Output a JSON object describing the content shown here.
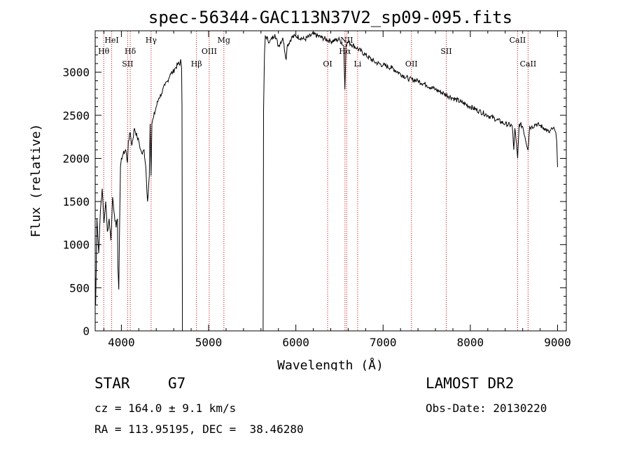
{
  "chart_data": {
    "type": "line",
    "title": "spec-56344-GAC113N37V2_sp09-095.fits",
    "xlabel": "Wavelength (Å)",
    "ylabel": "Flux (relative)",
    "xlim": [
      3700,
      9100
    ],
    "ylim": [
      0,
      3480
    ],
    "xticks": [
      4000,
      5000,
      6000,
      7000,
      8000,
      9000
    ],
    "yticks": [
      0,
      500,
      1000,
      1500,
      2000,
      2500,
      3000
    ],
    "xtick_labels": [
      "4000",
      "5000",
      "6000",
      "7000",
      "8000",
      "9000"
    ],
    "ytick_labels": [
      "0",
      "500",
      "1000",
      "1500",
      "2000",
      "2500",
      "3000"
    ],
    "grid": false,
    "line_color": "#000000",
    "marker_color": "#cc0000",
    "series": [
      {
        "x": [
          3700,
          3705,
          3720,
          3740,
          3760,
          3780,
          3800,
          3820,
          3840,
          3860,
          3880,
          3900,
          3920,
          3940,
          3955,
          3960,
          3970,
          3980,
          3990,
          4000,
          4020,
          4050,
          4070,
          4080,
          4102,
          4120,
          4150,
          4180,
          4200,
          4220,
          4240,
          4260,
          4280,
          4300,
          4320,
          4330,
          4340,
          4350,
          4370,
          4400,
          4430,
          4460,
          4500,
          4530,
          4560,
          4590,
          4620,
          4650,
          4670,
          4680,
          4690,
          4695,
          4700,
          4720,
          5000,
          5300,
          5600,
          5625,
          5630,
          5640,
          5650,
          5700,
          5760,
          5800,
          5850,
          5890,
          5900,
          5950,
          6000,
          6100,
          6200,
          6300,
          6400,
          6500,
          6550,
          6562,
          6575,
          6600,
          6700,
          6800,
          6900,
          7000,
          7100,
          7200,
          7300,
          7400,
          7500,
          7600,
          7700,
          7800,
          7900,
          8000,
          8100,
          8200,
          8300,
          8400,
          8480,
          8498,
          8510,
          8542,
          8560,
          8600,
          8662,
          8680,
          8700,
          8750,
          8800,
          8850,
          8900,
          8950,
          8970,
          8980,
          8990,
          9000
        ],
        "y": [
          650,
          300,
          1300,
          900,
          1400,
          1650,
          1250,
          1500,
          1150,
          1300,
          1050,
          1550,
          1350,
          1200,
          1300,
          750,
          480,
          1250,
          1900,
          2000,
          2050,
          2100,
          1950,
          2200,
          2300,
          2150,
          2350,
          2250,
          2200,
          2100,
          2050,
          2100,
          1900,
          1500,
          1800,
          2400,
          1800,
          2400,
          2480,
          2600,
          2700,
          2750,
          2850,
          2900,
          2980,
          3000,
          3050,
          3100,
          3080,
          3150,
          3050,
          2600,
          0,
          0,
          0,
          0,
          0,
          0,
          2550,
          3200,
          3420,
          3350,
          3440,
          3300,
          3400,
          3150,
          3300,
          3400,
          3420,
          3380,
          3440,
          3400,
          3360,
          3380,
          3300,
          2800,
          3320,
          3350,
          3280,
          3200,
          3120,
          3080,
          3050,
          2980,
          2920,
          2900,
          2850,
          2800,
          2750,
          2700,
          2650,
          2600,
          2550,
          2500,
          2450,
          2400,
          2380,
          2100,
          2350,
          2000,
          2400,
          2370,
          2100,
          2370,
          2360,
          2400,
          2380,
          2350,
          2300,
          2350,
          2320,
          2300,
          2200,
          1900
        ]
      }
    ],
    "line_markers": [
      {
        "label": "Hθ",
        "wl": 3798,
        "row": 2
      },
      {
        "label": "HeI",
        "wl": 3889,
        "row": 1
      },
      {
        "label": "Hδ",
        "wl": 4102,
        "row": 2
      },
      {
        "label": "SII",
        "wl": 4072,
        "row": 3
      },
      {
        "label": "Hγ",
        "wl": 4341,
        "row": 1
      },
      {
        "label": "Hβ",
        "wl": 4861,
        "row": 3
      },
      {
        "label": "OIII",
        "wl": 5007,
        "row": 2
      },
      {
        "label": "Mg",
        "wl": 5175,
        "row": 1
      },
      {
        "label": "OI",
        "wl": 6364,
        "row": 3
      },
      {
        "label": "Hα",
        "wl": 6563,
        "row": 2
      },
      {
        "label": "NII",
        "wl": 6583,
        "row": 1
      },
      {
        "label": "Li",
        "wl": 6708,
        "row": 3
      },
      {
        "label": "OII",
        "wl": 7325,
        "row": 3
      },
      {
        "label": "SII",
        "wl": 7724,
        "row": 2
      },
      {
        "label": "CaII",
        "wl": 8542,
        "row": 1
      },
      {
        "label": "CaII",
        "wl": 8662,
        "row": 3
      }
    ]
  },
  "info": {
    "object_class": "STAR",
    "subclass": "G7",
    "survey": "LAMOST DR2",
    "cz": "cz = 164.0 ± 9.1 km/s",
    "obs_date": "Obs-Date: 20130220",
    "coords": "RA = 113.95195, DEC =  38.46280"
  }
}
